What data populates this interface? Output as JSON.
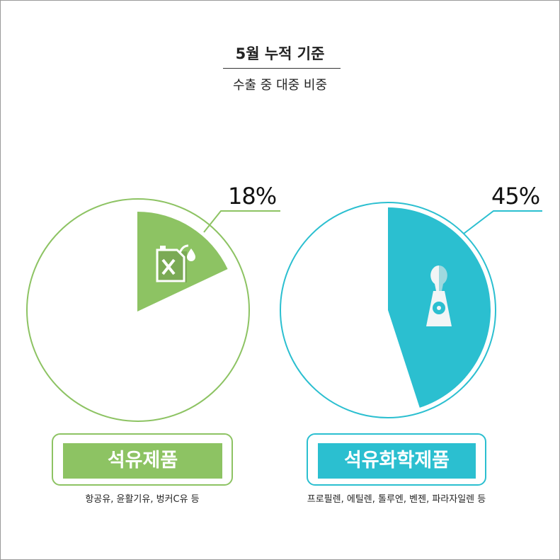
{
  "header": {
    "title": "5월 누적 기준",
    "subtitle": "수출 중 대중 비중"
  },
  "colors": {
    "petroleum": "#8dc363",
    "petrochemical": "#2bbfd0"
  },
  "chart_data": [
    {
      "type": "pie",
      "category": "석유제품",
      "values": [
        18,
        82
      ],
      "label": "18%",
      "color": "#8dc363",
      "icon": "fuel-can-icon",
      "caption": "항공유, 윤활기유, 벙커C유 등"
    },
    {
      "type": "pie",
      "category": "석유화학제품",
      "values": [
        45,
        55
      ],
      "label": "45%",
      "color": "#2bbfd0",
      "icon": "chemical-flask-icon",
      "caption": "프로필렌, 에틸렌, 톨루엔, 벤젠, 파라자일렌 등"
    }
  ]
}
